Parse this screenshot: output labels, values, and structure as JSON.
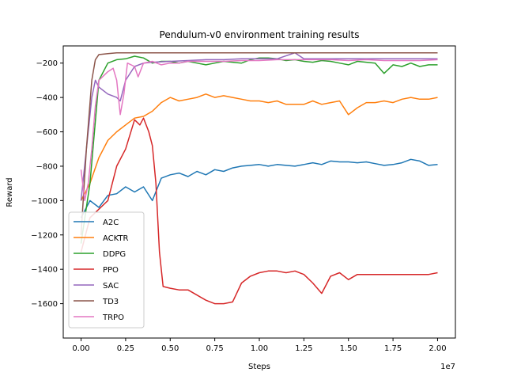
{
  "chart_data": {
    "type": "line",
    "title": "Pendulum-v0 environment training results",
    "xlabel": "Steps",
    "ylabel": "Reward",
    "x_offset_label": "1e7",
    "xlim": [
      -0.1,
      2.1
    ],
    "ylim": [
      -1800,
      -100
    ],
    "x_ticks": [
      0.0,
      0.25,
      0.5,
      0.75,
      1.0,
      1.25,
      1.5,
      1.75,
      2.0
    ],
    "x_tick_labels": [
      "0.00",
      "0.25",
      "0.50",
      "0.75",
      "1.00",
      "1.25",
      "1.50",
      "1.75",
      "2.00"
    ],
    "y_ticks": [
      -1600,
      -1400,
      -1200,
      -1000,
      -800,
      -600,
      -400,
      -200
    ],
    "y_tick_labels": [
      "−1600",
      "−1400",
      "−1200",
      "−1000",
      "−800",
      "−600",
      "−400",
      "−200"
    ],
    "grid": false,
    "legend_position": "lower-left",
    "series": [
      {
        "name": "A2C",
        "color": "#1f77b4",
        "points": [
          [
            0.0,
            -1100
          ],
          [
            0.05,
            -1000
          ],
          [
            0.1,
            -1040
          ],
          [
            0.15,
            -970
          ],
          [
            0.2,
            -960
          ],
          [
            0.25,
            -920
          ],
          [
            0.3,
            -950
          ],
          [
            0.35,
            -920
          ],
          [
            0.4,
            -1000
          ],
          [
            0.45,
            -870
          ],
          [
            0.5,
            -850
          ],
          [
            0.55,
            -840
          ],
          [
            0.6,
            -860
          ],
          [
            0.65,
            -830
          ],
          [
            0.7,
            -850
          ],
          [
            0.75,
            -820
          ],
          [
            0.8,
            -830
          ],
          [
            0.85,
            -810
          ],
          [
            0.9,
            -800
          ],
          [
            0.95,
            -795
          ],
          [
            1.0,
            -790
          ],
          [
            1.05,
            -800
          ],
          [
            1.1,
            -790
          ],
          [
            1.15,
            -795
          ],
          [
            1.2,
            -800
          ],
          [
            1.25,
            -790
          ],
          [
            1.3,
            -780
          ],
          [
            1.35,
            -790
          ],
          [
            1.4,
            -770
          ],
          [
            1.45,
            -775
          ],
          [
            1.5,
            -775
          ],
          [
            1.55,
            -780
          ],
          [
            1.6,
            -775
          ],
          [
            1.65,
            -785
          ],
          [
            1.7,
            -795
          ],
          [
            1.75,
            -790
          ],
          [
            1.8,
            -780
          ],
          [
            1.85,
            -760
          ],
          [
            1.9,
            -770
          ],
          [
            1.95,
            -795
          ],
          [
            2.0,
            -790
          ]
        ]
      },
      {
        "name": "ACKTR",
        "color": "#ff7f0e",
        "points": [
          [
            0.0,
            -1000
          ],
          [
            0.05,
            -900
          ],
          [
            0.1,
            -750
          ],
          [
            0.15,
            -650
          ],
          [
            0.2,
            -600
          ],
          [
            0.25,
            -560
          ],
          [
            0.3,
            -520
          ],
          [
            0.35,
            -510
          ],
          [
            0.4,
            -480
          ],
          [
            0.45,
            -430
          ],
          [
            0.5,
            -400
          ],
          [
            0.55,
            -420
          ],
          [
            0.6,
            -410
          ],
          [
            0.65,
            -400
          ],
          [
            0.7,
            -380
          ],
          [
            0.75,
            -400
          ],
          [
            0.8,
            -390
          ],
          [
            0.85,
            -400
          ],
          [
            0.9,
            -410
          ],
          [
            0.95,
            -420
          ],
          [
            1.0,
            -420
          ],
          [
            1.05,
            -430
          ],
          [
            1.1,
            -420
          ],
          [
            1.15,
            -440
          ],
          [
            1.2,
            -440
          ],
          [
            1.25,
            -440
          ],
          [
            1.3,
            -420
          ],
          [
            1.35,
            -440
          ],
          [
            1.4,
            -430
          ],
          [
            1.45,
            -420
          ],
          [
            1.5,
            -500
          ],
          [
            1.55,
            -460
          ],
          [
            1.6,
            -430
          ],
          [
            1.65,
            -430
          ],
          [
            1.7,
            -420
          ],
          [
            1.75,
            -430
          ],
          [
            1.8,
            -410
          ],
          [
            1.85,
            -400
          ],
          [
            1.9,
            -410
          ],
          [
            1.95,
            -410
          ],
          [
            2.0,
            -400
          ]
        ]
      },
      {
        "name": "DDPG",
        "color": "#2ca02c",
        "points": [
          [
            0.0,
            -1250
          ],
          [
            0.05,
            -900
          ],
          [
            0.1,
            -300
          ],
          [
            0.15,
            -200
          ],
          [
            0.2,
            -180
          ],
          [
            0.25,
            -175
          ],
          [
            0.3,
            -160
          ],
          [
            0.35,
            -170
          ],
          [
            0.4,
            -200
          ],
          [
            0.45,
            -190
          ],
          [
            0.5,
            -190
          ],
          [
            0.55,
            -200
          ],
          [
            0.6,
            -190
          ],
          [
            0.65,
            -200
          ],
          [
            0.7,
            -210
          ],
          [
            0.75,
            -200
          ],
          [
            0.8,
            -190
          ],
          [
            0.85,
            -195
          ],
          [
            0.9,
            -200
          ],
          [
            0.95,
            -180
          ],
          [
            1.0,
            -170
          ],
          [
            1.05,
            -170
          ],
          [
            1.1,
            -175
          ],
          [
            1.15,
            -185
          ],
          [
            1.2,
            -180
          ],
          [
            1.25,
            -190
          ],
          [
            1.3,
            -195
          ],
          [
            1.35,
            -185
          ],
          [
            1.4,
            -190
          ],
          [
            1.45,
            -200
          ],
          [
            1.5,
            -210
          ],
          [
            1.55,
            -190
          ],
          [
            1.6,
            -195
          ],
          [
            1.65,
            -200
          ],
          [
            1.7,
            -260
          ],
          [
            1.75,
            -210
          ],
          [
            1.8,
            -220
          ],
          [
            1.85,
            -200
          ],
          [
            1.9,
            -220
          ],
          [
            1.95,
            -210
          ],
          [
            2.0,
            -210
          ]
        ]
      },
      {
        "name": "PPO",
        "color": "#d62728",
        "points": [
          [
            0.0,
            -1300
          ],
          [
            0.05,
            -1100
          ],
          [
            0.1,
            -1050
          ],
          [
            0.15,
            -1000
          ],
          [
            0.2,
            -800
          ],
          [
            0.25,
            -700
          ],
          [
            0.3,
            -530
          ],
          [
            0.33,
            -560
          ],
          [
            0.35,
            -520
          ],
          [
            0.38,
            -600
          ],
          [
            0.4,
            -680
          ],
          [
            0.42,
            -900
          ],
          [
            0.44,
            -1300
          ],
          [
            0.46,
            -1500
          ],
          [
            0.5,
            -1510
          ],
          [
            0.55,
            -1520
          ],
          [
            0.6,
            -1520
          ],
          [
            0.65,
            -1550
          ],
          [
            0.7,
            -1580
          ],
          [
            0.75,
            -1600
          ],
          [
            0.8,
            -1600
          ],
          [
            0.85,
            -1590
          ],
          [
            0.9,
            -1480
          ],
          [
            0.95,
            -1440
          ],
          [
            1.0,
            -1420
          ],
          [
            1.05,
            -1410
          ],
          [
            1.1,
            -1410
          ],
          [
            1.15,
            -1420
          ],
          [
            1.2,
            -1410
          ],
          [
            1.25,
            -1430
          ],
          [
            1.3,
            -1480
          ],
          [
            1.35,
            -1540
          ],
          [
            1.4,
            -1440
          ],
          [
            1.45,
            -1420
          ],
          [
            1.5,
            -1460
          ],
          [
            1.55,
            -1430
          ],
          [
            1.6,
            -1430
          ],
          [
            1.65,
            -1430
          ],
          [
            1.7,
            -1430
          ],
          [
            1.75,
            -1430
          ],
          [
            1.8,
            -1430
          ],
          [
            1.85,
            -1430
          ],
          [
            1.9,
            -1430
          ],
          [
            1.95,
            -1430
          ],
          [
            2.0,
            -1420
          ]
        ]
      },
      {
        "name": "SAC",
        "color": "#9467bd",
        "points": [
          [
            0.0,
            -1000
          ],
          [
            0.03,
            -700
          ],
          [
            0.06,
            -400
          ],
          [
            0.08,
            -300
          ],
          [
            0.1,
            -340
          ],
          [
            0.15,
            -380
          ],
          [
            0.2,
            -400
          ],
          [
            0.22,
            -420
          ],
          [
            0.25,
            -300
          ],
          [
            0.3,
            -220
          ],
          [
            0.35,
            -200
          ],
          [
            0.4,
            -195
          ],
          [
            0.5,
            -190
          ],
          [
            0.6,
            -185
          ],
          [
            0.7,
            -180
          ],
          [
            0.8,
            -180
          ],
          [
            0.9,
            -175
          ],
          [
            1.0,
            -175
          ],
          [
            1.1,
            -175
          ],
          [
            1.2,
            -140
          ],
          [
            1.25,
            -175
          ],
          [
            1.3,
            -175
          ],
          [
            1.4,
            -175
          ],
          [
            1.5,
            -175
          ],
          [
            1.6,
            -175
          ],
          [
            1.7,
            -175
          ],
          [
            1.8,
            -175
          ],
          [
            1.9,
            -175
          ],
          [
            2.0,
            -175
          ]
        ]
      },
      {
        "name": "TD3",
        "color": "#8c564b",
        "points": [
          [
            0.0,
            -1200
          ],
          [
            0.03,
            -700
          ],
          [
            0.06,
            -300
          ],
          [
            0.08,
            -180
          ],
          [
            0.1,
            -150
          ],
          [
            0.15,
            -145
          ],
          [
            0.2,
            -140
          ],
          [
            0.3,
            -140
          ],
          [
            0.4,
            -140
          ],
          [
            0.5,
            -140
          ],
          [
            0.75,
            -140
          ],
          [
            1.0,
            -140
          ],
          [
            1.25,
            -140
          ],
          [
            1.5,
            -140
          ],
          [
            1.75,
            -140
          ],
          [
            2.0,
            -140
          ]
        ]
      },
      {
        "name": "TRPO",
        "color": "#e377c2",
        "points": [
          [
            0.0,
            -820
          ],
          [
            0.02,
            -1000
          ],
          [
            0.04,
            -900
          ],
          [
            0.06,
            -700
          ],
          [
            0.08,
            -450
          ],
          [
            0.1,
            -300
          ],
          [
            0.15,
            -250
          ],
          [
            0.18,
            -230
          ],
          [
            0.2,
            -300
          ],
          [
            0.22,
            -500
          ],
          [
            0.24,
            -380
          ],
          [
            0.26,
            -200
          ],
          [
            0.3,
            -220
          ],
          [
            0.32,
            -280
          ],
          [
            0.35,
            -200
          ],
          [
            0.4,
            -190
          ],
          [
            0.45,
            -210
          ],
          [
            0.5,
            -200
          ],
          [
            0.55,
            -200
          ],
          [
            0.6,
            -190
          ],
          [
            0.7,
            -190
          ],
          [
            0.8,
            -190
          ],
          [
            0.9,
            -185
          ],
          [
            1.0,
            -185
          ],
          [
            1.1,
            -180
          ],
          [
            1.2,
            -180
          ],
          [
            1.3,
            -180
          ],
          [
            1.4,
            -180
          ],
          [
            1.5,
            -185
          ],
          [
            1.6,
            -180
          ],
          [
            1.7,
            -185
          ],
          [
            1.8,
            -185
          ],
          [
            1.9,
            -185
          ],
          [
            2.0,
            -180
          ]
        ]
      }
    ]
  }
}
